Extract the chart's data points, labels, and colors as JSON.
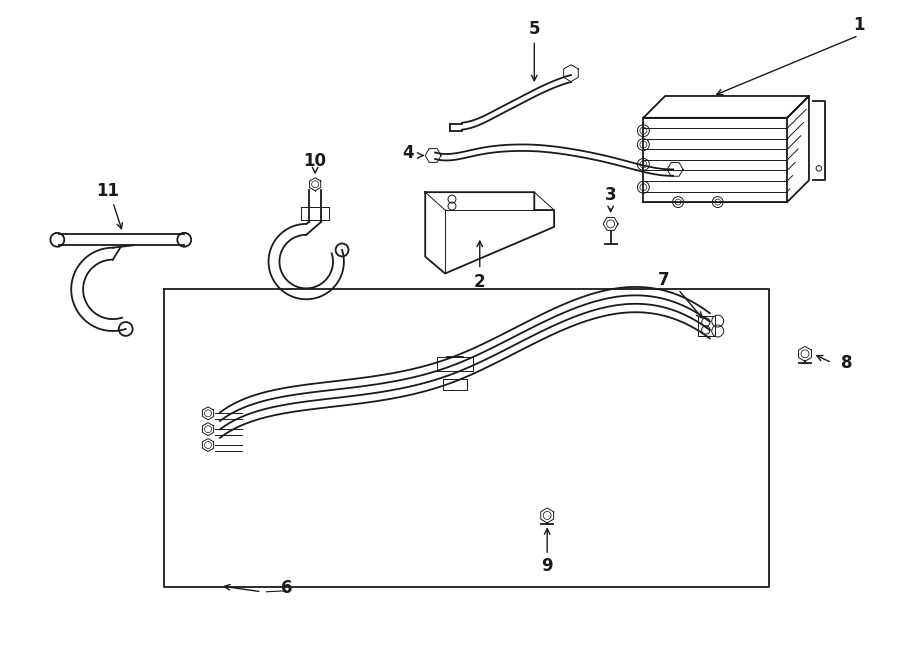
{
  "bg_color": "#ffffff",
  "line_color": "#1a1a1a",
  "fig_width": 9.0,
  "fig_height": 6.61,
  "lw_main": 1.3,
  "lw_thin": 0.7,
  "label_fontsize": 12,
  "parts": [
    1,
    2,
    3,
    4,
    5,
    6,
    7,
    8,
    9,
    10,
    11
  ]
}
